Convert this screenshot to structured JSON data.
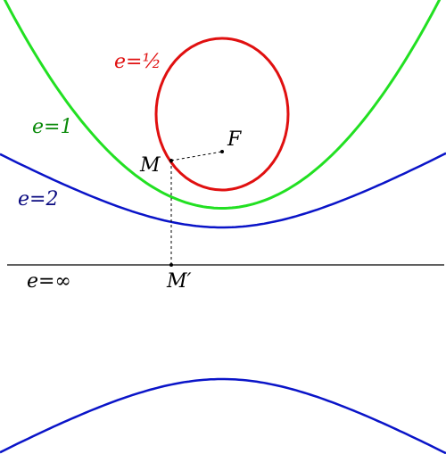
{
  "curves": [
    {
      "label": "e=½"
    },
    {
      "label": "e=1"
    },
    {
      "label": "e=2"
    },
    {
      "label": "e=∞"
    }
  ],
  "points": [
    {
      "label": "M"
    },
    {
      "label": "F"
    },
    {
      "label": "M′"
    }
  ]
}
